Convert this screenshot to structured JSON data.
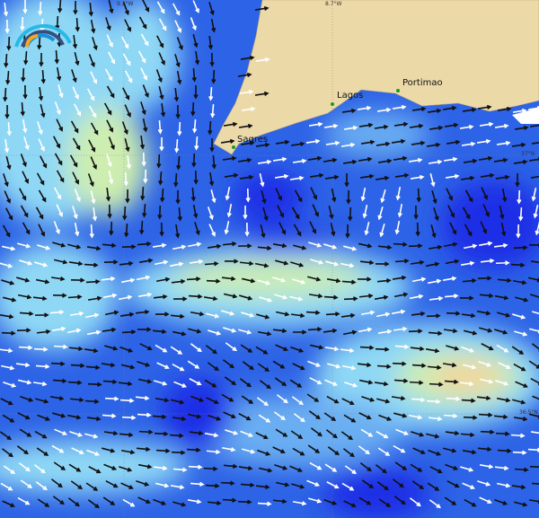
{
  "map": {
    "places": [
      {
        "name": "Sagres"
      },
      {
        "name": "Lagos"
      },
      {
        "name": "Portimao"
      }
    ],
    "grid_labels": {
      "lon_left": "9.2°W",
      "lon_right": "8.7°W",
      "lat_top": "37°N",
      "lat_bottom": "36.5°N"
    },
    "colors": {
      "land": "#ecd9a8",
      "deep": "#1e2ee6",
      "mid": "#3f7ef0",
      "light": "#8fd8f5",
      "pale": "#c8f2f5",
      "green": "#cdeeb0",
      "orange": "#f6d39a"
    },
    "logo": "arc-gauge-logo"
  }
}
